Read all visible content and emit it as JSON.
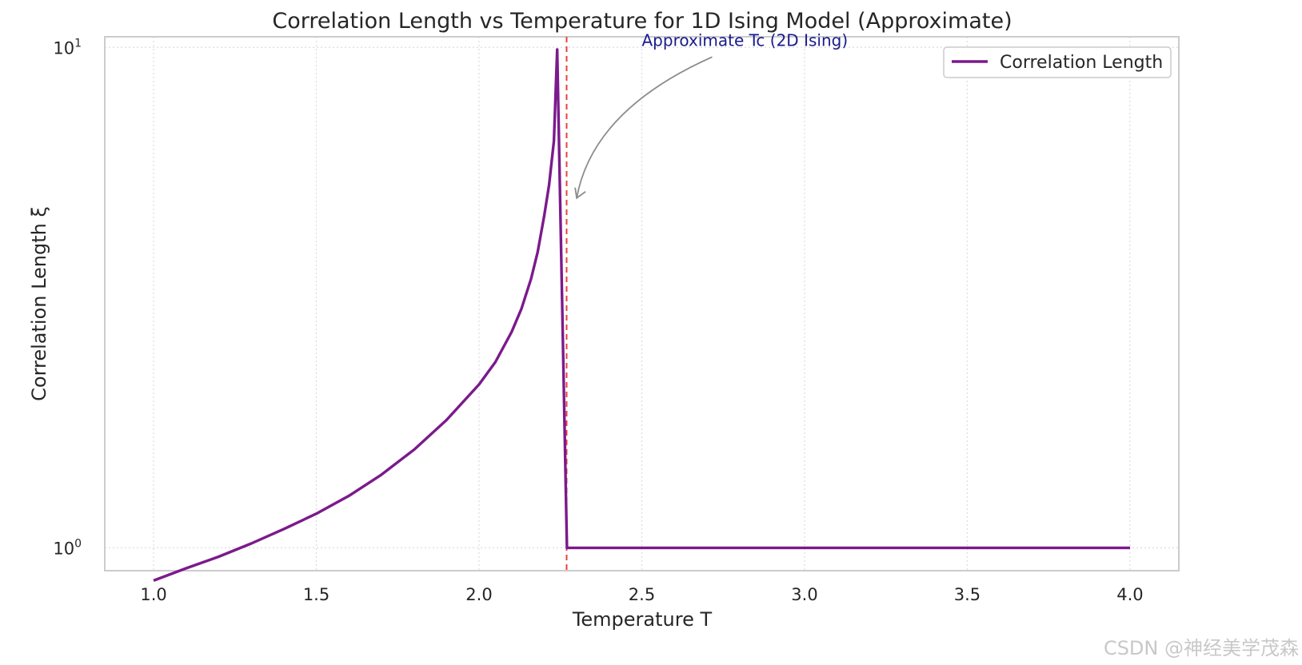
{
  "chart_data": {
    "type": "line",
    "title": "Correlation Length vs Temperature for 1D Ising Model (Approximate)",
    "xlabel": "Temperature T",
    "ylabel": "Correlation Length ξ",
    "xlim": [
      0.85,
      4.15
    ],
    "ylim": [
      0.9,
      10.5
    ],
    "yscale": "log",
    "grid": true,
    "legend_position": "top-right",
    "x_ticks": [
      1.0,
      1.5,
      2.0,
      2.5,
      3.0,
      3.5,
      4.0
    ],
    "x_tick_labels": [
      "1.0",
      "1.5",
      "2.0",
      "2.5",
      "3.0",
      "3.5",
      "4.0"
    ],
    "y_ticks": [
      {
        "value": 1,
        "base": "10",
        "exp": "0"
      },
      {
        "value": 10,
        "base": "10",
        "exp": "1"
      }
    ],
    "series": [
      {
        "name": "Correlation Length",
        "color": "#7b1a8c",
        "x": [
          1.0,
          1.1,
          1.2,
          1.3,
          1.4,
          1.5,
          1.6,
          1.7,
          1.8,
          1.9,
          2.0,
          2.05,
          2.1,
          2.13,
          2.16,
          2.18,
          2.2,
          2.215,
          2.23,
          2.24,
          2.27,
          2.3,
          2.5,
          3.0,
          3.5,
          4.0
        ],
        "y": [
          0.86,
          0.91,
          0.96,
          1.02,
          1.09,
          1.17,
          1.27,
          1.4,
          1.57,
          1.8,
          2.12,
          2.35,
          2.7,
          3.0,
          3.45,
          3.9,
          4.6,
          5.3,
          6.5,
          9.9,
          1.0,
          1.0,
          1.0,
          1.0,
          1.0,
          1.0
        ]
      }
    ],
    "vline": {
      "x": 2.269,
      "color": "#e8423a",
      "style": "dashed"
    },
    "annotation": {
      "text": "Approximate Tc (2D Ising)",
      "xy": [
        2.3,
        5.0
      ],
      "xytext": [
        2.5,
        10.0
      ],
      "color": "#1a1a8c"
    }
  },
  "watermark": "CSDN @神经美学茂森"
}
